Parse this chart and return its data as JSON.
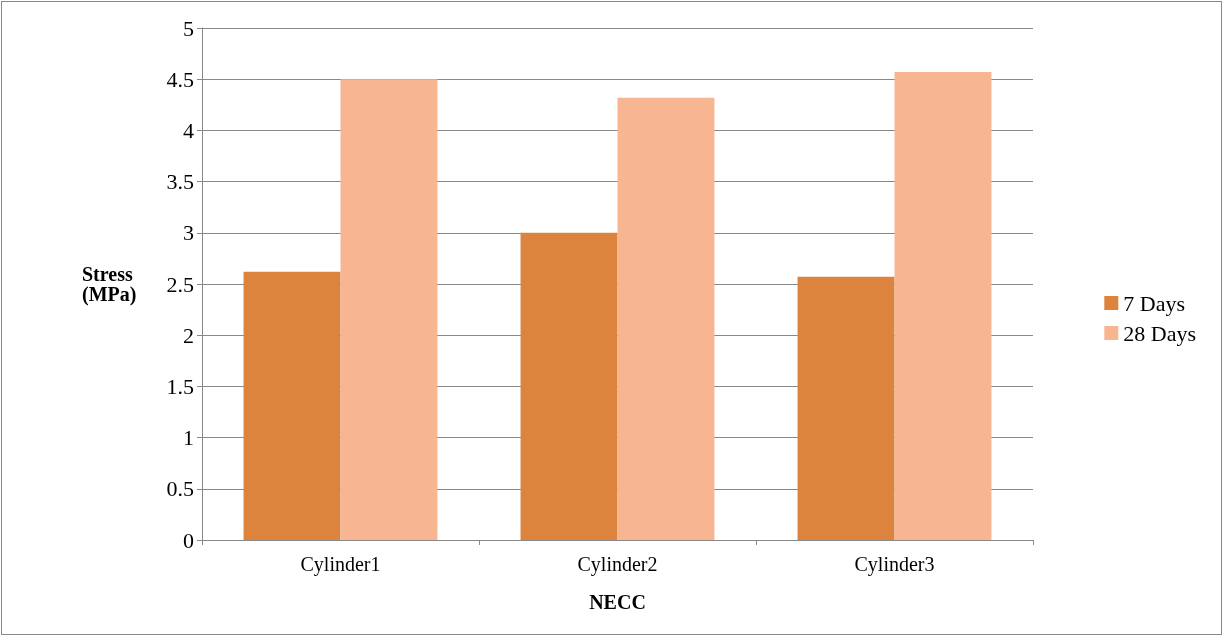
{
  "chart_data": {
    "type": "bar",
    "xlabel": "NECC",
    "ylabel": "Stress\n(MPa)",
    "categories": [
      "Cylinder1",
      "Cylinder2",
      "Cylinder3"
    ],
    "series": [
      {
        "name": "7 Days",
        "color": "#dc843e",
        "values": [
          2.62,
          3.0,
          2.57
        ]
      },
      {
        "name": "28 Days",
        "color": "#f8b592",
        "values": [
          4.5,
          4.32,
          4.57
        ]
      }
    ],
    "ylim": [
      0,
      5
    ],
    "yticks": [
      0,
      0.5,
      1,
      1.5,
      2,
      2.5,
      3,
      3.5,
      4,
      4.5,
      5
    ],
    "grid": "y",
    "legend": "right"
  }
}
